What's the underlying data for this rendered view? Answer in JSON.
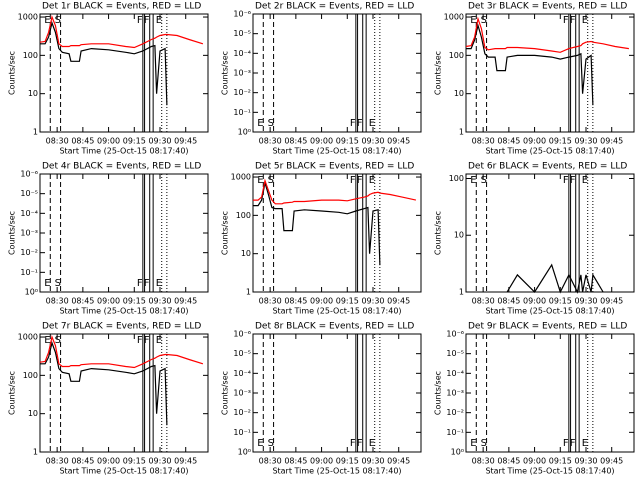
{
  "chart_data": [
    {
      "type": "line",
      "title": "Det 1r BLACK = Events, RED = LLD",
      "xlabel": "Start Time (25-Oct-15 08:17:40)",
      "ylabel": "Counts/sec",
      "log_y": true,
      "xlim": [
        "08:20",
        "09:58"
      ],
      "xticks": [
        "08:30",
        "08:45",
        "09:00",
        "09:15",
        "09:30",
        "09:45"
      ],
      "ylim": [
        1,
        1200
      ],
      "yticks": [
        1,
        10,
        100,
        1000
      ],
      "x": [
        "08:20",
        "08:23",
        "08:25",
        "08:27",
        "08:29",
        "08:31",
        "08:33",
        "08:37",
        "08:38",
        "08:43",
        "08:44",
        "08:50",
        "09:00",
        "09:10",
        "09:15",
        "09:20",
        "09:25",
        "09:27",
        "09:28",
        "09:30",
        "09:33",
        "09:34",
        "09:40",
        "09:47",
        "09:55"
      ],
      "series": [
        {
          "color": "#000000",
          "values": [
            200,
            200,
            300,
            700,
            400,
            150,
            120,
            110,
            70,
            70,
            130,
            150,
            140,
            120,
            110,
            130,
            170,
            180,
            10,
            130,
            150,
            5,
            null,
            null,
            null
          ]
        },
        {
          "color": "#ff0000",
          "values": [
            220,
            230,
            400,
            1000,
            600,
            200,
            170,
            170,
            180,
            180,
            190,
            200,
            200,
            170,
            160,
            200,
            260,
            280,
            300,
            330,
            350,
            350,
            330,
            260,
            200
          ]
        }
      ],
      "vlines": [
        {
          "x": "08:26",
          "style": "dashed",
          "label": "E"
        },
        {
          "x": "08:32",
          "style": "dashed",
          "label": "S"
        },
        {
          "x": "09:20",
          "style": "solid",
          "label": "F"
        },
        {
          "x": "09:21",
          "style": "solid"
        },
        {
          "x": "09:24",
          "style": "solid",
          "label": "F"
        },
        {
          "x": "09:26",
          "style": "solid"
        },
        {
          "x": "09:31",
          "style": "dotted",
          "label": "E"
        },
        {
          "x": "09:34",
          "style": "dotted"
        }
      ]
    },
    {
      "type": "line",
      "title": "Det 2r BLACK = Events, RED = LLD",
      "xlabel": "Start Time (25-Oct-15 08:17:40)",
      "ylabel": "Counts/sec",
      "log_y": true,
      "xlim": [
        "08:20",
        "09:58"
      ],
      "xticks": [
        "08:30",
        "08:45",
        "09:00",
        "09:15",
        "09:30",
        "09:45"
      ],
      "ylim": [
        1,
        1e-06
      ],
      "yticks": [
        {
          "value": 1e-06,
          "label": "10⁻⁶"
        },
        {
          "value": 1e-05,
          "label": "10⁻⁵"
        },
        {
          "value": 0.0001,
          "label": "10⁻⁴"
        },
        {
          "value": 0.001,
          "label": "10⁻³"
        },
        {
          "value": 0.01,
          "label": "10⁻²"
        },
        {
          "value": 0.1,
          "label": "10⁻¹"
        },
        {
          "value": 1,
          "label": "10⁰"
        }
      ],
      "vlines": [
        {
          "x": "08:26",
          "style": "dashed",
          "label": "E"
        },
        {
          "x": "08:32",
          "style": "dashed",
          "label": "S"
        },
        {
          "x": "09:20",
          "style": "solid",
          "label": "F"
        },
        {
          "x": "09:21",
          "style": "solid"
        },
        {
          "x": "09:24",
          "style": "solid",
          "label": "F"
        },
        {
          "x": "09:26",
          "style": "solid"
        },
        {
          "x": "09:31",
          "style": "dotted",
          "label": "E"
        },
        {
          "x": "09:34",
          "style": "dotted"
        }
      ]
    },
    {
      "type": "line",
      "title": "Det 3r BLACK = Events, RED = LLD",
      "xlabel": "Start Time (25-Oct-15 08:17:40)",
      "ylabel": "Counts/sec",
      "log_y": true,
      "xlim": [
        "08:20",
        "09:58"
      ],
      "xticks": [
        "08:30",
        "08:45",
        "09:00",
        "09:15",
        "09:30",
        "09:45"
      ],
      "ylim": [
        1,
        1200
      ],
      "yticks": [
        1,
        10,
        100,
        1000
      ],
      "x": [
        "08:20",
        "08:23",
        "08:25",
        "08:27",
        "08:29",
        "08:31",
        "08:33",
        "08:37",
        "08:38",
        "08:43",
        "08:44",
        "08:50",
        "09:00",
        "09:10",
        "09:15",
        "09:20",
        "09:25",
        "09:27",
        "09:28",
        "09:30",
        "09:33",
        "09:34",
        "09:40",
        "09:47",
        "09:55"
      ],
      "series": [
        {
          "color": "#000000",
          "values": [
            150,
            150,
            250,
            600,
            300,
            110,
            90,
            90,
            40,
            40,
            90,
            100,
            100,
            90,
            80,
            90,
            100,
            110,
            10,
            80,
            100,
            5,
            null,
            null,
            null
          ]
        },
        {
          "color": "#ff0000",
          "values": [
            170,
            180,
            300,
            900,
            500,
            160,
            140,
            150,
            150,
            150,
            160,
            160,
            150,
            130,
            120,
            150,
            170,
            180,
            200,
            220,
            230,
            220,
            200,
            170,
            150
          ]
        }
      ],
      "vlines": [
        {
          "x": "08:26",
          "style": "dashed",
          "label": "E"
        },
        {
          "x": "08:32",
          "style": "dashed",
          "label": "S"
        },
        {
          "x": "09:20",
          "style": "solid",
          "label": "F"
        },
        {
          "x": "09:21",
          "style": "solid"
        },
        {
          "x": "09:24",
          "style": "solid",
          "label": "F"
        },
        {
          "x": "09:26",
          "style": "solid"
        },
        {
          "x": "09:31",
          "style": "dotted",
          "label": "E"
        },
        {
          "x": "09:34",
          "style": "dotted"
        }
      ]
    },
    {
      "type": "line",
      "title": "Det 4r BLACK = Events, RED = LLD",
      "xlabel": "Start Time (25-Oct-15 08:17:40)",
      "ylabel": "Counts/sec",
      "log_y": true,
      "xlim": [
        "08:20",
        "09:58"
      ],
      "xticks": [
        "08:30",
        "08:45",
        "09:00",
        "09:15",
        "09:30",
        "09:45"
      ],
      "ylim": [
        1,
        1e-06
      ],
      "yticks": [
        {
          "value": 1e-06,
          "label": "10⁻⁶"
        },
        {
          "value": 1e-05,
          "label": "10⁻⁵"
        },
        {
          "value": 0.0001,
          "label": "10⁻⁴"
        },
        {
          "value": 0.001,
          "label": "10⁻³"
        },
        {
          "value": 0.01,
          "label": "10⁻²"
        },
        {
          "value": 0.1,
          "label": "10⁻¹"
        },
        {
          "value": 1,
          "label": "10⁰"
        }
      ],
      "vlines": [
        {
          "x": "08:26",
          "style": "dashed",
          "label": "E"
        },
        {
          "x": "08:32",
          "style": "dashed",
          "label": "S"
        },
        {
          "x": "09:20",
          "style": "solid",
          "label": "F"
        },
        {
          "x": "09:21",
          "style": "solid"
        },
        {
          "x": "09:24",
          "style": "solid",
          "label": "F"
        },
        {
          "x": "09:26",
          "style": "solid"
        },
        {
          "x": "09:31",
          "style": "dotted",
          "label": "E"
        },
        {
          "x": "09:34",
          "style": "dotted"
        }
      ]
    },
    {
      "type": "line",
      "title": "Det 5r BLACK = Events, RED = LLD",
      "xlabel": "Start Time (25-Oct-15 08:17:40)",
      "ylabel": "Counts/sec",
      "log_y": true,
      "xlim": [
        "08:20",
        "09:58"
      ],
      "xticks": [
        "08:30",
        "08:45",
        "09:00",
        "09:15",
        "09:30",
        "09:45"
      ],
      "ylim": [
        1,
        1200
      ],
      "yticks": [
        1,
        10,
        100,
        1000
      ],
      "x": [
        "08:20",
        "08:23",
        "08:25",
        "08:27",
        "08:29",
        "08:31",
        "08:33",
        "08:37",
        "08:38",
        "08:43",
        "08:44",
        "08:50",
        "09:00",
        "09:10",
        "09:15",
        "09:20",
        "09:25",
        "09:27",
        "09:28",
        "09:30",
        "09:33",
        "09:34",
        "09:40",
        "09:47",
        "09:55"
      ],
      "series": [
        {
          "color": "#000000",
          "values": [
            180,
            180,
            250,
            700,
            350,
            160,
            150,
            150,
            40,
            40,
            130,
            140,
            130,
            120,
            110,
            130,
            150,
            160,
            10,
            130,
            140,
            5,
            null,
            null,
            null
          ]
        },
        {
          "color": "#ff0000",
          "values": [
            250,
            250,
            300,
            800,
            450,
            250,
            200,
            200,
            210,
            220,
            230,
            230,
            250,
            250,
            240,
            270,
            300,
            320,
            350,
            380,
            400,
            380,
            350,
            300,
            250
          ]
        }
      ],
      "vlines": [
        {
          "x": "08:26",
          "style": "dashed",
          "label": "E"
        },
        {
          "x": "08:32",
          "style": "dashed",
          "label": "S"
        },
        {
          "x": "09:20",
          "style": "solid",
          "label": "F"
        },
        {
          "x": "09:21",
          "style": "solid"
        },
        {
          "x": "09:24",
          "style": "solid",
          "label": "F"
        },
        {
          "x": "09:26",
          "style": "solid"
        },
        {
          "x": "09:31",
          "style": "dotted",
          "label": "E"
        },
        {
          "x": "09:34",
          "style": "dotted"
        }
      ]
    },
    {
      "type": "line",
      "title": "Det 6r BLACK = Events, RED = LLD",
      "xlabel": "Start Time (25-Oct-15 08:17:40)",
      "ylabel": "Counts/sec",
      "log_y": true,
      "xlim": [
        "08:20",
        "09:58"
      ],
      "xticks": [
        "08:30",
        "08:45",
        "09:00",
        "09:15",
        "09:30",
        "09:45"
      ],
      "ylim": [
        1,
        120
      ],
      "yticks": [
        1,
        10,
        100
      ],
      "x": [
        "08:20",
        "08:23",
        "08:25",
        "08:27",
        "08:29",
        "08:31",
        "08:33",
        "08:37",
        "08:38",
        "08:43",
        "08:44",
        "08:50",
        "09:00",
        "09:10",
        "09:15",
        "09:20",
        "09:25",
        "09:27",
        "09:28",
        "09:30",
        "09:33",
        "09:34",
        "09:40",
        "09:47",
        "09:55"
      ],
      "series": [
        {
          "color": "#000000",
          "values": [
            null,
            null,
            null,
            null,
            null,
            null,
            null,
            null,
            null,
            null,
            1,
            2,
            1,
            3,
            1,
            2,
            1,
            2,
            1,
            2,
            1,
            2,
            1,
            null,
            null
          ]
        }
      ],
      "vlines": [
        {
          "x": "08:26",
          "style": "dashed",
          "label": "E"
        },
        {
          "x": "08:32",
          "style": "dashed",
          "label": "S"
        },
        {
          "x": "09:20",
          "style": "solid",
          "label": "F"
        },
        {
          "x": "09:21",
          "style": "solid"
        },
        {
          "x": "09:24",
          "style": "solid",
          "label": "F"
        },
        {
          "x": "09:26",
          "style": "solid"
        },
        {
          "x": "09:31",
          "style": "dotted",
          "label": "E"
        },
        {
          "x": "09:34",
          "style": "dotted"
        }
      ]
    },
    {
      "type": "line",
      "title": "Det 7r BLACK = Events, RED = LLD",
      "xlabel": "Start Time (25-Oct-15 08:17:40)",
      "ylabel": "Counts/sec",
      "log_y": true,
      "xlim": [
        "08:20",
        "09:58"
      ],
      "xticks": [
        "08:30",
        "08:45",
        "09:00",
        "09:15",
        "09:30",
        "09:45"
      ],
      "ylim": [
        1,
        1200
      ],
      "yticks": [
        1,
        10,
        100,
        1000
      ],
      "x": [
        "08:20",
        "08:23",
        "08:25",
        "08:27",
        "08:29",
        "08:31",
        "08:33",
        "08:37",
        "08:38",
        "08:43",
        "08:44",
        "08:50",
        "09:00",
        "09:10",
        "09:15",
        "09:20",
        "09:25",
        "09:27",
        "09:28",
        "09:30",
        "09:33",
        "09:34",
        "09:40",
        "09:47",
        "09:55"
      ],
      "series": [
        {
          "color": "#000000",
          "values": [
            200,
            200,
            300,
            700,
            400,
            150,
            120,
            110,
            70,
            70,
            130,
            150,
            140,
            120,
            110,
            130,
            170,
            180,
            10,
            130,
            150,
            5,
            null,
            null,
            null
          ]
        },
        {
          "color": "#ff0000",
          "values": [
            220,
            230,
            400,
            1000,
            600,
            200,
            170,
            170,
            180,
            180,
            190,
            200,
            200,
            170,
            160,
            200,
            260,
            280,
            300,
            330,
            350,
            350,
            330,
            260,
            200
          ]
        }
      ],
      "vlines": [
        {
          "x": "08:26",
          "style": "dashed",
          "label": "E"
        },
        {
          "x": "08:32",
          "style": "dashed",
          "label": "S"
        },
        {
          "x": "09:20",
          "style": "solid",
          "label": "F"
        },
        {
          "x": "09:21",
          "style": "solid"
        },
        {
          "x": "09:24",
          "style": "solid",
          "label": "F"
        },
        {
          "x": "09:26",
          "style": "solid"
        },
        {
          "x": "09:31",
          "style": "dotted",
          "label": "E"
        },
        {
          "x": "09:34",
          "style": "dotted"
        }
      ]
    },
    {
      "type": "line",
      "title": "Det 8r BLACK = Events, RED = LLD",
      "xlabel": "Start Time (25-Oct-15 08:17:40)",
      "ylabel": "Counts/sec",
      "log_y": true,
      "xlim": [
        "08:20",
        "09:58"
      ],
      "xticks": [
        "08:30",
        "08:45",
        "09:00",
        "09:15",
        "09:30",
        "09:45"
      ],
      "ylim": [
        1,
        1e-06
      ],
      "yticks": [
        {
          "value": 1e-06,
          "label": "10⁻⁶"
        },
        {
          "value": 1e-05,
          "label": "10⁻⁵"
        },
        {
          "value": 0.0001,
          "label": "10⁻⁴"
        },
        {
          "value": 0.001,
          "label": "10⁻³"
        },
        {
          "value": 0.01,
          "label": "10⁻²"
        },
        {
          "value": 0.1,
          "label": "10⁻¹"
        },
        {
          "value": 1,
          "label": "10⁰"
        }
      ],
      "vlines": [
        {
          "x": "08:26",
          "style": "dashed",
          "label": "E"
        },
        {
          "x": "08:32",
          "style": "dashed",
          "label": "S"
        },
        {
          "x": "09:20",
          "style": "solid",
          "label": "F"
        },
        {
          "x": "09:21",
          "style": "solid"
        },
        {
          "x": "09:24",
          "style": "solid",
          "label": "F"
        },
        {
          "x": "09:26",
          "style": "solid"
        },
        {
          "x": "09:31",
          "style": "dotted",
          "label": "E"
        },
        {
          "x": "09:34",
          "style": "dotted"
        }
      ]
    },
    {
      "type": "line",
      "title": "Det 9r BLACK = Events, RED = LLD",
      "xlabel": "Start Time (25-Oct-15 08:17:40)",
      "ylabel": "Counts/sec",
      "log_y": true,
      "xlim": [
        "08:20",
        "09:58"
      ],
      "xticks": [
        "08:30",
        "08:45",
        "09:00",
        "09:15",
        "09:30",
        "09:45"
      ],
      "ylim": [
        1,
        1e-06
      ],
      "yticks": [
        {
          "value": 1e-06,
          "label": "10⁻⁶"
        },
        {
          "value": 1e-05,
          "label": "10⁻⁵"
        },
        {
          "value": 0.0001,
          "label": "10⁻⁴"
        },
        {
          "value": 0.001,
          "label": "10⁻³"
        },
        {
          "value": 0.01,
          "label": "10⁻²"
        },
        {
          "value": 0.1,
          "label": "10⁻¹"
        },
        {
          "value": 1,
          "label": "10⁰"
        }
      ],
      "vlines": [
        {
          "x": "08:26",
          "style": "dashed",
          "label": "E"
        },
        {
          "x": "08:32",
          "style": "dashed",
          "label": "S"
        },
        {
          "x": "09:20",
          "style": "solid",
          "label": "F"
        },
        {
          "x": "09:21",
          "style": "solid"
        },
        {
          "x": "09:24",
          "style": "solid",
          "label": "F"
        },
        {
          "x": "09:26",
          "style": "solid"
        },
        {
          "x": "09:31",
          "style": "dotted",
          "label": "E"
        },
        {
          "x": "09:34",
          "style": "dotted"
        }
      ]
    }
  ]
}
